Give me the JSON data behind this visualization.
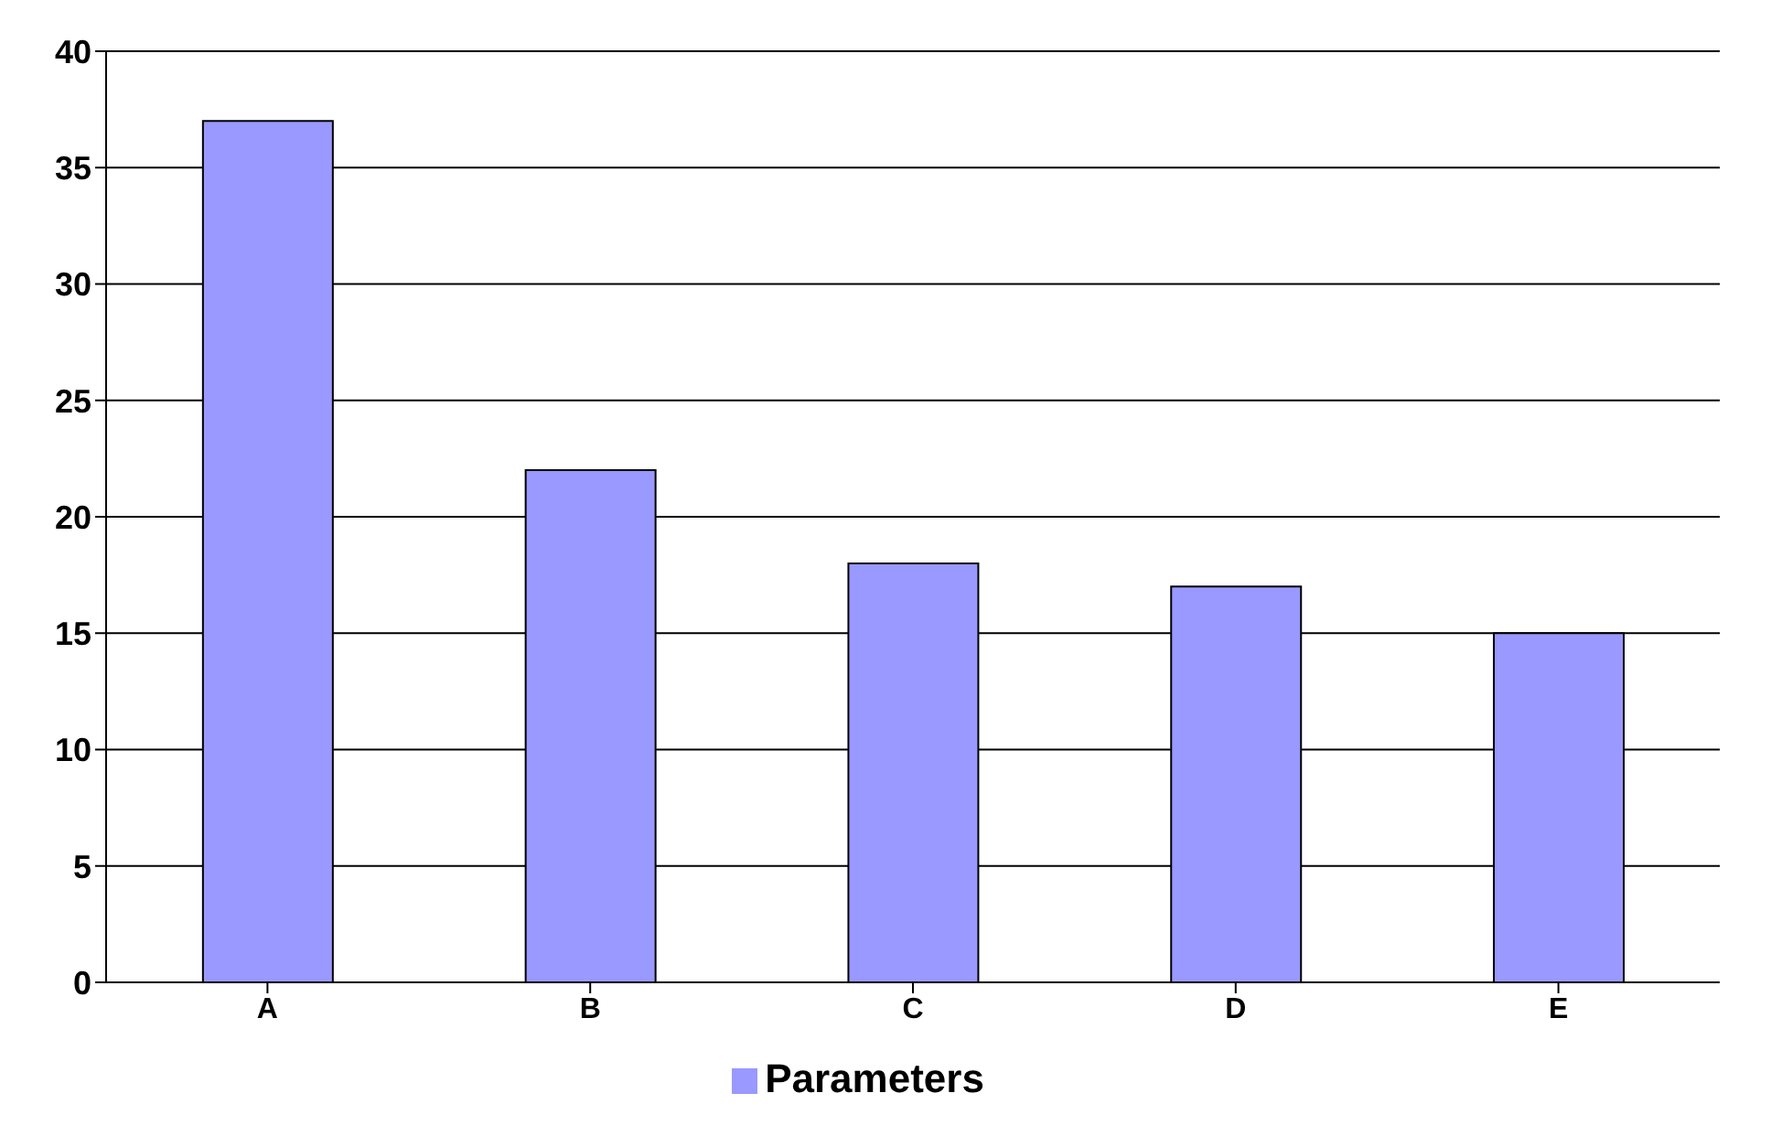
{
  "chart_data": {
    "type": "bar",
    "categories": [
      "A",
      "B",
      "C",
      "D",
      "E"
    ],
    "series": [
      {
        "name": "Parameters",
        "color": "#9999ff",
        "values": [
          37,
          22,
          18,
          17,
          15
        ]
      }
    ],
    "ylim": [
      0,
      40
    ],
    "yticks": [
      0,
      5,
      10,
      15,
      20,
      25,
      30,
      35,
      40
    ],
    "grid": "y",
    "legend": "bottom"
  }
}
